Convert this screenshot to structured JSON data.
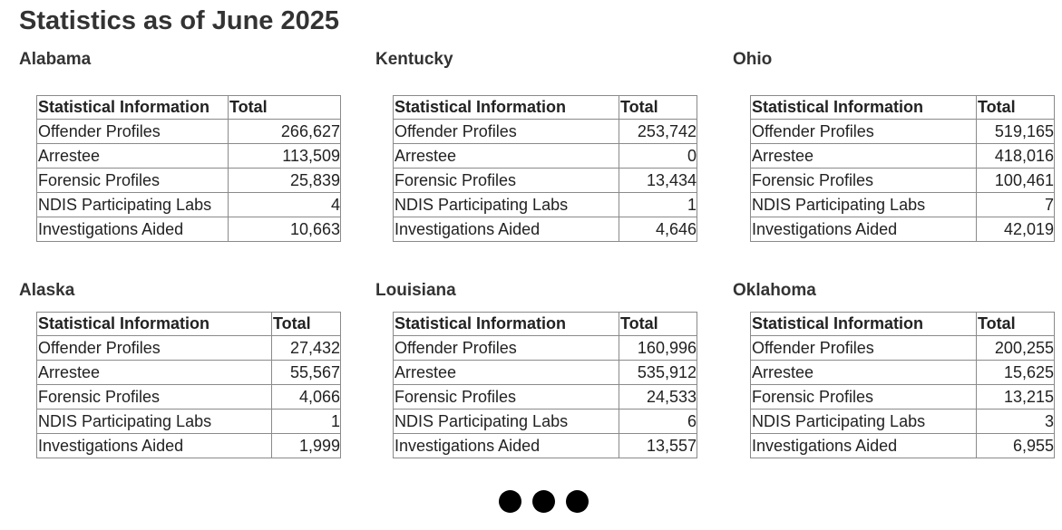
{
  "page": {
    "title": "Statistics as of June 2025"
  },
  "table_headers": {
    "col1": "Statistical Information",
    "col2": "Total"
  },
  "states": [
    {
      "name": "Alabama",
      "rows": [
        {
          "label": "Offender Profiles",
          "total": "266,627"
        },
        {
          "label": "Arrestee",
          "total": "113,509"
        },
        {
          "label": "Forensic Profiles",
          "total": "25,839"
        },
        {
          "label": "NDIS Participating Labs",
          "total": "4"
        },
        {
          "label": "Investigations Aided",
          "total": "10,663"
        }
      ]
    },
    {
      "name": "Kentucky",
      "rows": [
        {
          "label": "Offender Profiles",
          "total": "253,742"
        },
        {
          "label": "Arrestee",
          "total": "0"
        },
        {
          "label": "Forensic Profiles",
          "total": "13,434"
        },
        {
          "label": "NDIS Participating Labs",
          "total": "1"
        },
        {
          "label": "Investigations Aided",
          "total": "4,646"
        }
      ]
    },
    {
      "name": "Ohio",
      "rows": [
        {
          "label": "Offender Profiles",
          "total": "519,165"
        },
        {
          "label": "Arrestee",
          "total": "418,016"
        },
        {
          "label": "Forensic Profiles",
          "total": "100,461"
        },
        {
          "label": "NDIS Participating Labs",
          "total": "7"
        },
        {
          "label": "Investigations Aided",
          "total": "42,019"
        }
      ]
    },
    {
      "name": "Alaska",
      "rows": [
        {
          "label": "Offender Profiles",
          "total": "27,432"
        },
        {
          "label": "Arrestee",
          "total": "55,567"
        },
        {
          "label": "Forensic Profiles",
          "total": "4,066"
        },
        {
          "label": "NDIS Participating Labs",
          "total": "1"
        },
        {
          "label": "Investigations Aided",
          "total": "1,999"
        }
      ]
    },
    {
      "name": "Louisiana",
      "rows": [
        {
          "label": "Offender Profiles",
          "total": "160,996"
        },
        {
          "label": "Arrestee",
          "total": "535,912"
        },
        {
          "label": "Forensic Profiles",
          "total": "24,533"
        },
        {
          "label": "NDIS Participating Labs",
          "total": "6"
        },
        {
          "label": "Investigations Aided",
          "total": "13,557"
        }
      ]
    },
    {
      "name": "Oklahoma",
      "rows": [
        {
          "label": "Offender Profiles",
          "total": "200,255"
        },
        {
          "label": "Arrestee",
          "total": "15,625"
        },
        {
          "label": "Forensic Profiles",
          "total": "13,215"
        },
        {
          "label": "NDIS Participating Labs",
          "total": "3"
        },
        {
          "label": "Investigations Aided",
          "total": "6,955"
        }
      ]
    }
  ],
  "pagination": {
    "dots": [
      "page-1",
      "page-2",
      "page-3"
    ],
    "color": "#000000"
  }
}
